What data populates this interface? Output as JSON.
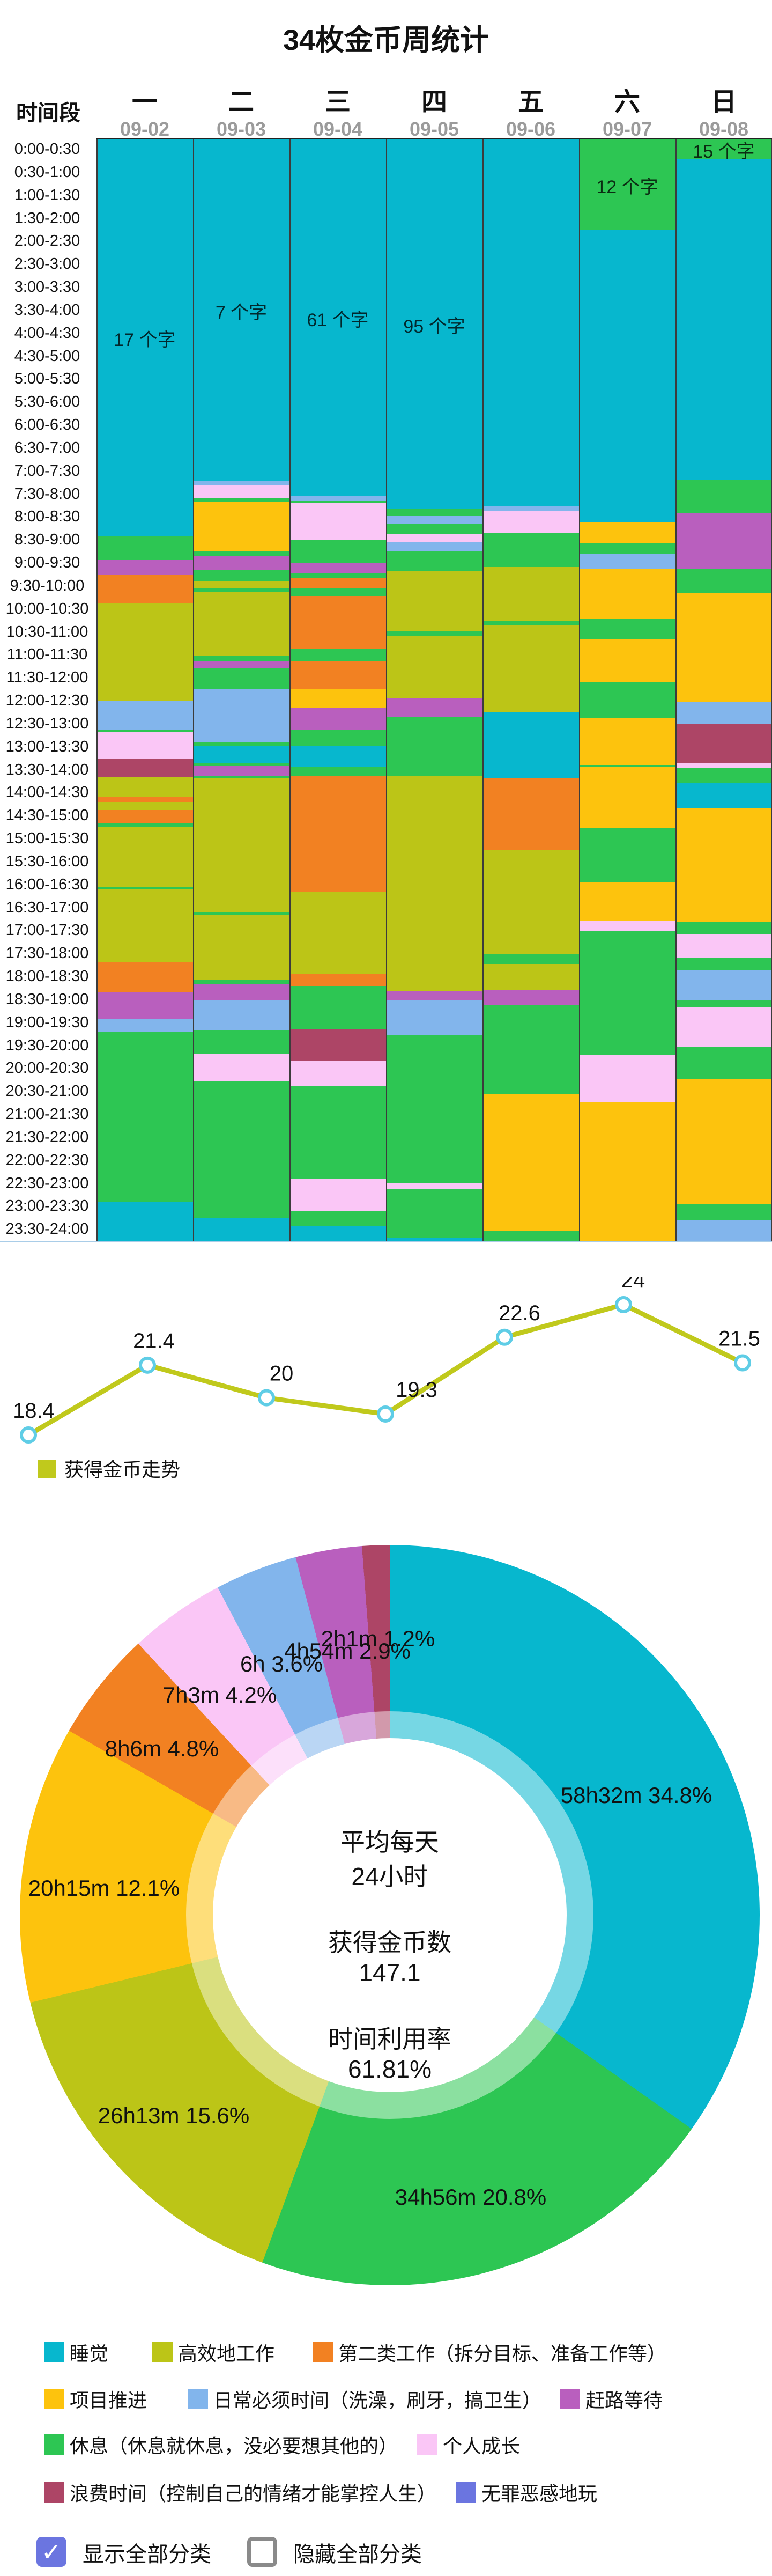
{
  "title": "34枚金币周统计",
  "header": {
    "corner_label": "时间段",
    "days": [
      {
        "name": "一",
        "date": "09-02"
      },
      {
        "name": "二",
        "date": "09-03"
      },
      {
        "name": "三",
        "date": "09-04"
      },
      {
        "name": "四",
        "date": "09-05"
      },
      {
        "name": "五",
        "date": "09-06"
      },
      {
        "name": "六",
        "date": "09-07"
      },
      {
        "name": "日",
        "date": "09-08"
      }
    ]
  },
  "palette": {
    "sleep": "#07b7ce",
    "work": "#bcc517",
    "work2": "#f28122",
    "project": "#fdc30d",
    "daily": "#82b5ec",
    "commute": "#b95fbe",
    "rest": "#2dc653",
    "growth": "#fac6f6",
    "waste": "#ad4566",
    "play": "#6b75e0"
  },
  "categories": {
    "sleep": "睡觉",
    "work": "高效地工作",
    "work2": "第二类工作（拆分目标、准备工作等）",
    "project": "项目推进",
    "daily": "日常必须时间（洗澡，刷牙，搞卫生）",
    "commute": "赶路等待",
    "rest": "休息（休息就休息，没必要想其他的）",
    "growth": "个人成长",
    "waste": "浪费时间（控制自己的情绪才能掌控人生）",
    "play": "无罪恶感地玩"
  },
  "chart_data": [
    {
      "id": "time-mosaic",
      "type": "heatmap",
      "title": "34枚金币周统计",
      "x_categories": [
        "09-02",
        "09-03",
        "09-04",
        "09-05",
        "09-06",
        "09-07",
        "09-08"
      ],
      "rows": [
        "0:00-0:30",
        "0:30-1:00",
        "1:00-1:30",
        "1:30-2:00",
        "2:00-2:30",
        "2:30-3:00",
        "3:00-3:30",
        "3:30-4:00",
        "4:00-4:30",
        "4:30-5:00",
        "5:00-5:30",
        "5:30-6:00",
        "6:00-6:30",
        "6:30-7:00",
        "7:00-7:30",
        "7:30-8:00",
        "8:00-8:30",
        "8:30-9:00",
        "9:00-9:30",
        "9:30-10:00",
        "10:00-10:30",
        "10:30-11:00",
        "11:00-11:30",
        "11:30-12:00",
        "12:00-12:30",
        "12:30-13:00",
        "13:00-13:30",
        "13:30-14:00",
        "14:00-14:30",
        "14:30-15:00",
        "15:00-15:30",
        "15:30-16:00",
        "16:00-16:30",
        "16:30-17:00",
        "17:00-17:30",
        "17:30-18:00",
        "18:00-18:30",
        "18:30-19:00",
        "19:00-19:30",
        "19:30-20:00",
        "20:00-20:30",
        "20:30-21:00",
        "21:00-21:30",
        "21:30-22:00",
        "22:00-22:30",
        "22:30-23:00",
        "23:00-23:30",
        "23:30-24:00"
      ],
      "unit_slots": 48,
      "columns": [
        {
          "day": "09-02",
          "segments": [
            [
              "sleep",
              17.25
            ],
            [
              "rest",
              1.05
            ],
            [
              "commute",
              0.63
            ],
            [
              "work2",
              1.26
            ],
            [
              "work",
              4.22
            ],
            [
              "daily",
              1.29
            ],
            [
              "rest",
              0.08
            ],
            [
              "growth",
              1.17
            ],
            [
              "waste",
              0.82
            ],
            [
              "work",
              0.84
            ],
            [
              "work2",
              0.23
            ],
            [
              "work",
              0.35
            ],
            [
              "work2",
              0.58
            ],
            [
              "rest",
              0.16
            ],
            [
              "work",
              2.59
            ],
            [
              "rest",
              0.1
            ],
            [
              "work",
              3.2
            ],
            [
              "work2",
              1.31
            ],
            [
              "commute",
              1.14
            ],
            [
              "daily",
              0.59
            ],
            [
              "rest",
              7.37
            ],
            [
              "sleep",
              1.77
            ]
          ]
        },
        {
          "day": "09-03",
          "segments": [
            [
              "sleep",
              14.84
            ],
            [
              "daily",
              0.21
            ],
            [
              "growth",
              0.58
            ],
            [
              "rest",
              0.15
            ],
            [
              "project",
              2.14
            ],
            [
              "rest",
              0.19
            ],
            [
              "commute",
              0.63
            ],
            [
              "rest",
              0.47
            ],
            [
              "work",
              0.3
            ],
            [
              "rest",
              0.19
            ],
            [
              "work",
              2.77
            ],
            [
              "rest",
              0.24
            ],
            [
              "commute",
              0.3
            ],
            [
              "rest",
              0.91
            ],
            [
              "daily",
              2.29
            ],
            [
              "rest",
              0.16
            ],
            [
              "sleep",
              0.79
            ],
            [
              "rest",
              0.12
            ],
            [
              "commute",
              0.4
            ],
            [
              "rest",
              0.11
            ],
            [
              "work",
              5.84
            ],
            [
              "rest",
              0.12
            ],
            [
              "work",
              2.8
            ],
            [
              "rest",
              0.23
            ],
            [
              "commute",
              0.68
            ],
            [
              "daily",
              1.3
            ],
            [
              "rest",
              1.03
            ],
            [
              "growth",
              1.19
            ],
            [
              "rest",
              5.98
            ],
            [
              "sleep",
              1.04
            ]
          ]
        },
        {
          "day": "09-04",
          "segments": [
            [
              "sleep",
              15.5
            ],
            [
              "daily",
              0.21
            ],
            [
              "rest",
              0.11
            ],
            [
              "growth",
              1.59
            ],
            [
              "rest",
              1.0
            ],
            [
              "commute",
              0.45
            ],
            [
              "rest",
              0.23
            ],
            [
              "work2",
              0.42
            ],
            [
              "rest",
              0.35
            ],
            [
              "work2",
              2.33
            ],
            [
              "rest",
              0.52
            ],
            [
              "work2",
              1.21
            ],
            [
              "project",
              0.82
            ],
            [
              "commute",
              0.96
            ],
            [
              "rest",
              0.67
            ],
            [
              "sleep",
              0.93
            ],
            [
              "rest",
              0.42
            ],
            [
              "work2",
              5.01
            ],
            [
              "work",
              3.59
            ],
            [
              "work2",
              0.51
            ],
            [
              "rest",
              1.91
            ],
            [
              "waste",
              1.35
            ],
            [
              "growth",
              1.1
            ],
            [
              "rest",
              4.06
            ],
            [
              "growth",
              1.37
            ],
            [
              "rest",
              0.65
            ],
            [
              "sleep",
              0.73
            ]
          ]
        },
        {
          "day": "09-05",
          "segments": [
            [
              "sleep",
              16.08
            ],
            [
              "rest",
              0.28
            ],
            [
              "daily",
              0.35
            ],
            [
              "rest",
              0.47
            ],
            [
              "growth",
              0.32
            ],
            [
              "daily",
              0.42
            ],
            [
              "rest",
              0.84
            ],
            [
              "work",
              2.62
            ],
            [
              "rest",
              0.23
            ],
            [
              "work",
              2.69
            ],
            [
              "commute",
              0.81
            ],
            [
              "rest",
              2.61
            ],
            [
              "work",
              9.34
            ],
            [
              "commute",
              0.42
            ],
            [
              "daily",
              1.52
            ],
            [
              "rest",
              6.41
            ],
            [
              "growth",
              0.28
            ],
            [
              "rest",
              2.09
            ],
            [
              "sleep",
              0.22
            ]
          ]
        },
        {
          "day": "09-06",
          "segments": [
            [
              "sleep",
              15.94
            ],
            [
              "daily",
              0.23
            ],
            [
              "growth",
              0.96
            ],
            [
              "rest",
              1.47
            ],
            [
              "work",
              2.36
            ],
            [
              "rest",
              0.19
            ],
            [
              "work",
              3.78
            ],
            [
              "sleep",
              2.84
            ],
            [
              "work2",
              3.13
            ],
            [
              "work",
              4.57
            ],
            [
              "rest",
              0.42
            ],
            [
              "work",
              1.12
            ],
            [
              "commute",
              0.68
            ],
            [
              "rest",
              3.87
            ],
            [
              "project",
              5.94
            ],
            [
              "rest",
              0.5
            ]
          ]
        },
        {
          "day": "09-07",
          "segments": [
            [
              "rest",
              3.92
            ],
            [
              "sleep",
              12.74
            ],
            [
              "project",
              0.91
            ],
            [
              "rest",
              0.47
            ],
            [
              "daily",
              0.63
            ],
            [
              "project",
              2.17
            ],
            [
              "rest",
              0.89
            ],
            [
              "project",
              1.89
            ],
            [
              "rest",
              1.58
            ],
            [
              "project",
              2.01
            ],
            [
              "rest",
              0.09
            ],
            [
              "project",
              2.66
            ],
            [
              "rest",
              2.38
            ],
            [
              "project",
              1.67
            ],
            [
              "growth",
              0.42
            ],
            [
              "rest",
              5.43
            ],
            [
              "growth",
              2.03
            ],
            [
              "project",
              6.11
            ]
          ]
        },
        {
          "day": "09-08",
          "segments": [
            [
              "rest",
              0.86
            ],
            [
              "sleep",
              13.94
            ],
            [
              "rest",
              1.44
            ],
            [
              "commute",
              2.43
            ],
            [
              "rest",
              1.07
            ],
            [
              "project",
              4.76
            ],
            [
              "daily",
              0.94
            ],
            [
              "waste",
              1.72
            ],
            [
              "growth",
              0.21
            ],
            [
              "rest",
              0.63
            ],
            [
              "sleep",
              1.12
            ],
            [
              "project",
              4.91
            ],
            [
              "rest",
              0.54
            ],
            [
              "growth",
              1.03
            ],
            [
              "rest",
              0.53
            ],
            [
              "daily",
              1.35
            ],
            [
              "rest",
              0.28
            ],
            [
              "growth",
              1.75
            ],
            [
              "rest",
              1.4
            ],
            [
              "project",
              5.4
            ],
            [
              "rest",
              0.73
            ],
            [
              "daily",
              0.96
            ]
          ]
        }
      ],
      "block_labels": [
        {
          "col": 0,
          "row": 8.62,
          "text": "17 个字"
        },
        {
          "col": 1,
          "row": 7.42,
          "text": "7 个字"
        },
        {
          "col": 2,
          "row": 7.75,
          "text": "61 个字"
        },
        {
          "col": 3,
          "row": 8.04,
          "text": "95 个字"
        },
        {
          "col": 5,
          "row": 1.96,
          "text": "12 个字"
        },
        {
          "col": 6,
          "row": 0.43,
          "text": "15 个字"
        }
      ]
    },
    {
      "id": "coins-trend",
      "type": "line",
      "categories": [
        "09-02",
        "09-03",
        "09-04",
        "09-05",
        "09-06",
        "09-07",
        "09-08"
      ],
      "values": [
        18.4,
        21.4,
        20,
        19.3,
        22.6,
        24,
        21.5
      ],
      "value_labels": [
        "18.4",
        "21.4",
        "20",
        "19.3",
        "22.6",
        "24",
        "21.5"
      ],
      "legend": "获得金币走势",
      "line_color": "#c0c91c",
      "marker_stroke": "#5fcde6",
      "ylim": [
        18,
        24.5
      ],
      "grid": false,
      "legend_position": "bottom-left"
    },
    {
      "id": "weekly-pie",
      "type": "pie",
      "slices": [
        {
          "category": "sleep",
          "label": "58h32m 34.8%",
          "pct": 34.8
        },
        {
          "category": "rest",
          "label": "34h56m 20.8%",
          "pct": 20.8
        },
        {
          "category": "work",
          "label": "26h13m 15.6%",
          "pct": 15.6
        },
        {
          "category": "project",
          "label": "20h15m 12.1%",
          "pct": 12.1
        },
        {
          "category": "work2",
          "label": "8h6m 4.8%",
          "pct": 4.8
        },
        {
          "category": "growth",
          "label": "7h3m 4.2%",
          "pct": 4.2
        },
        {
          "category": "daily",
          "label": "6h 3.6%",
          "pct": 3.6
        },
        {
          "category": "commute",
          "label": "4h54m 2.9%",
          "pct": 2.9
        },
        {
          "category": "waste",
          "label": "2h1m 1.2%",
          "pct": 1.2
        }
      ],
      "center_lines": [
        "平均每天",
        "24小时",
        "获得金币数",
        "147.1",
        "时间利用率",
        "61.81%"
      ]
    }
  ],
  "legend_rows": [
    [
      "sleep",
      "work",
      "work2"
    ],
    [
      "project",
      "daily",
      "commute"
    ],
    [
      "rest",
      "growth"
    ],
    [
      "waste",
      "play"
    ]
  ],
  "footer": {
    "show_label": "显示全部分类",
    "hide_label": "隐藏全部分类",
    "show_checked": true,
    "hide_checked": false,
    "check_glyph": "✓"
  }
}
